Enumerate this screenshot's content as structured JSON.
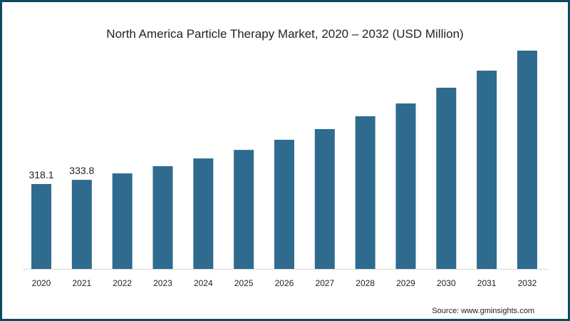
{
  "chart_data": {
    "type": "bar",
    "title": "North America Particle Therapy Market, 2020 – 2032 (USD Million)",
    "xlabel": "",
    "ylabel": "",
    "categories": [
      "2020",
      "2021",
      "2022",
      "2023",
      "2024",
      "2025",
      "2026",
      "2027",
      "2028",
      "2029",
      "2030",
      "2031",
      "2032"
    ],
    "values": [
      318.1,
      333.8,
      358,
      385,
      414,
      446,
      484,
      524,
      572,
      620,
      679,
      743,
      818
    ],
    "data_labels": {
      "0": "318.1",
      "1": "333.8"
    },
    "ylim": [
      0,
      850
    ],
    "grid": false,
    "bar_color": "#2e6b8e",
    "border_color": "#0d4a5e",
    "source": "Source: www.gminsights.com"
  }
}
